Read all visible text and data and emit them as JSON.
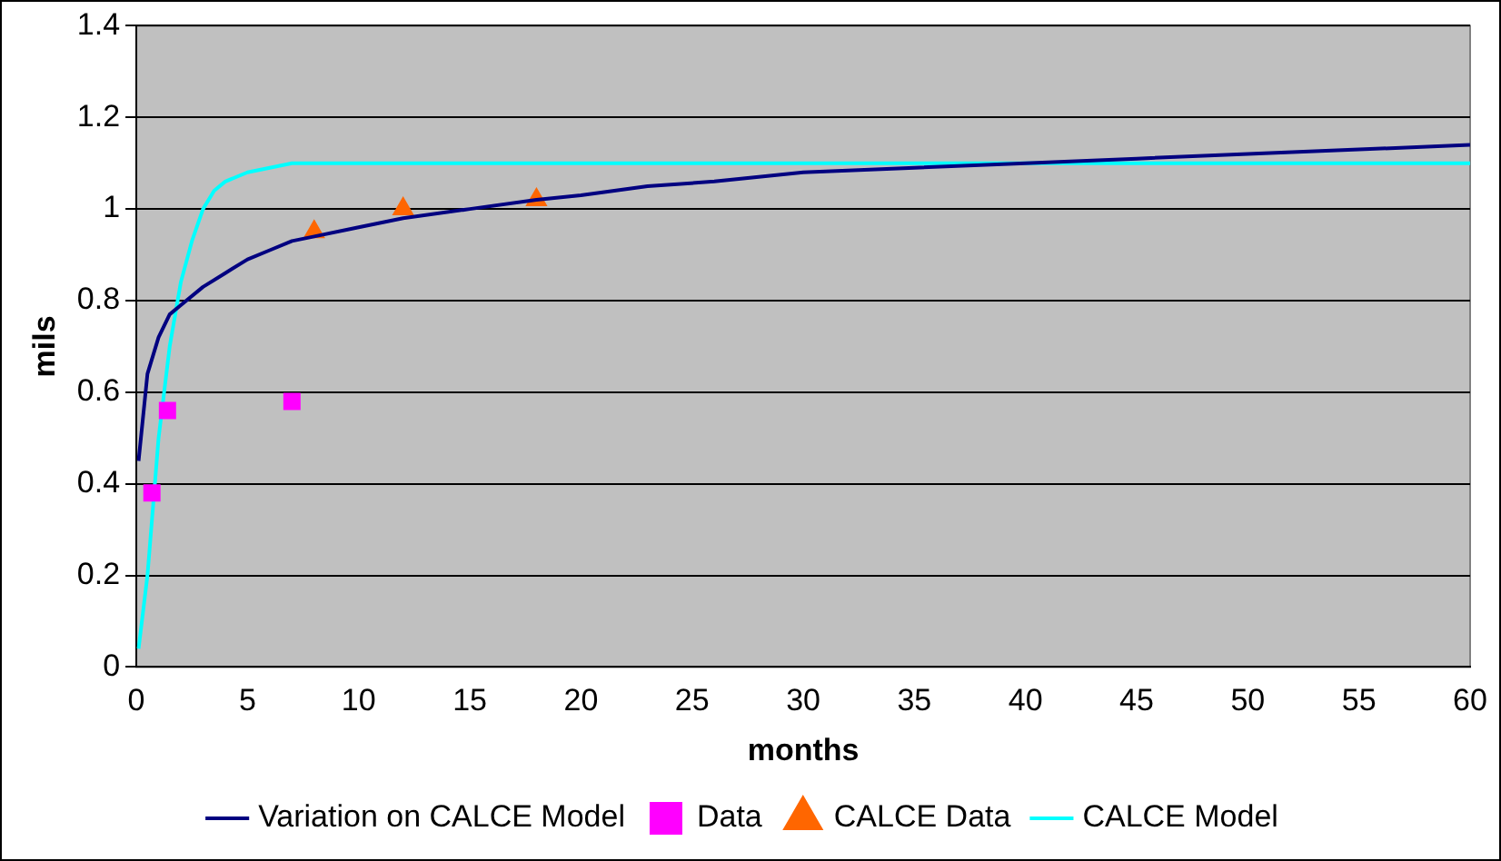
{
  "chart_data": {
    "type": "line",
    "xlabel": "months",
    "ylabel": "mils",
    "xlim": [
      0,
      60
    ],
    "xticks": [
      0,
      5,
      10,
      15,
      20,
      25,
      30,
      35,
      40,
      45,
      50,
      55,
      60
    ],
    "ylim": [
      0,
      1.4
    ],
    "yticks": [
      0,
      0.2,
      0.4,
      0.6,
      0.8,
      1,
      1.2,
      1.4
    ],
    "grid": "y",
    "legend": "bottom",
    "series": [
      {
        "name": "Variation on CALCE Model",
        "type": "line",
        "color": "#000080",
        "marker": "none",
        "x": [
          0.1,
          0.5,
          1,
          1.5,
          2,
          3,
          4,
          5,
          6,
          7,
          8,
          10,
          12,
          15,
          18,
          20,
          23,
          26,
          30,
          35,
          40,
          45,
          50,
          55,
          60
        ],
        "values": [
          0.45,
          0.64,
          0.72,
          0.77,
          0.79,
          0.83,
          0.86,
          0.89,
          0.91,
          0.93,
          0.94,
          0.96,
          0.98,
          1.0,
          1.02,
          1.03,
          1.05,
          1.06,
          1.08,
          1.09,
          1.1,
          1.11,
          1.12,
          1.13,
          1.14
        ]
      },
      {
        "name": "Data",
        "type": "scatter",
        "color": "#ff00ff",
        "marker": "square",
        "x": [
          0.7,
          1.4,
          7
        ],
        "values": [
          0.38,
          0.56,
          0.58
        ]
      },
      {
        "name": "CALCE Data",
        "type": "scatter",
        "color": "#ff6600",
        "marker": "triangle",
        "x": [
          8,
          12,
          18
        ],
        "values": [
          0.95,
          1.0,
          1.02
        ]
      },
      {
        "name": "CALCE Model",
        "type": "line",
        "color": "#00ffff",
        "marker": "none",
        "x": [
          0.1,
          0.5,
          1,
          1.5,
          2,
          2.5,
          3,
          3.5,
          4,
          5,
          6,
          7,
          10,
          20,
          30,
          50,
          60
        ],
        "values": [
          0.04,
          0.2,
          0.5,
          0.7,
          0.84,
          0.93,
          1.0,
          1.04,
          1.06,
          1.08,
          1.09,
          1.1,
          1.1,
          1.1,
          1.1,
          1.1,
          1.1
        ]
      }
    ]
  }
}
